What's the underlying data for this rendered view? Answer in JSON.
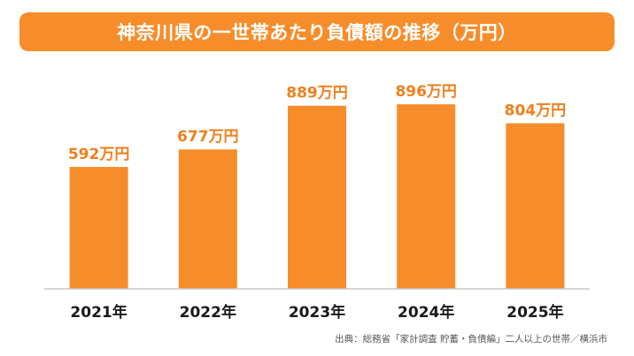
{
  "title": "神奈川県の一世帯あたり負債額の推移（万円）",
  "source": "出典：総務省「家計調査 貯蓄・負債編」二人以上の世帯／横浜市",
  "colors": {
    "bar": "#f78d2a",
    "banner": "#f78d2a",
    "value_label": "#f07f1c",
    "axis_label": "#1a1a1a",
    "baseline": "#c8c8c8"
  },
  "chart_data": {
    "type": "bar",
    "title": "神奈川県の一世帯あたり負債額の推移（万円）",
    "categories": [
      "2021年",
      "2022年",
      "2023年",
      "2024年",
      "2025年"
    ],
    "values": [
      592,
      677,
      889,
      896,
      804
    ],
    "value_labels": [
      "592万円",
      "677万円",
      "889万円",
      "896万円",
      "804万円"
    ],
    "unit": "万円",
    "ylim": [
      0,
      965
    ],
    "grid": false,
    "legend": "none"
  }
}
